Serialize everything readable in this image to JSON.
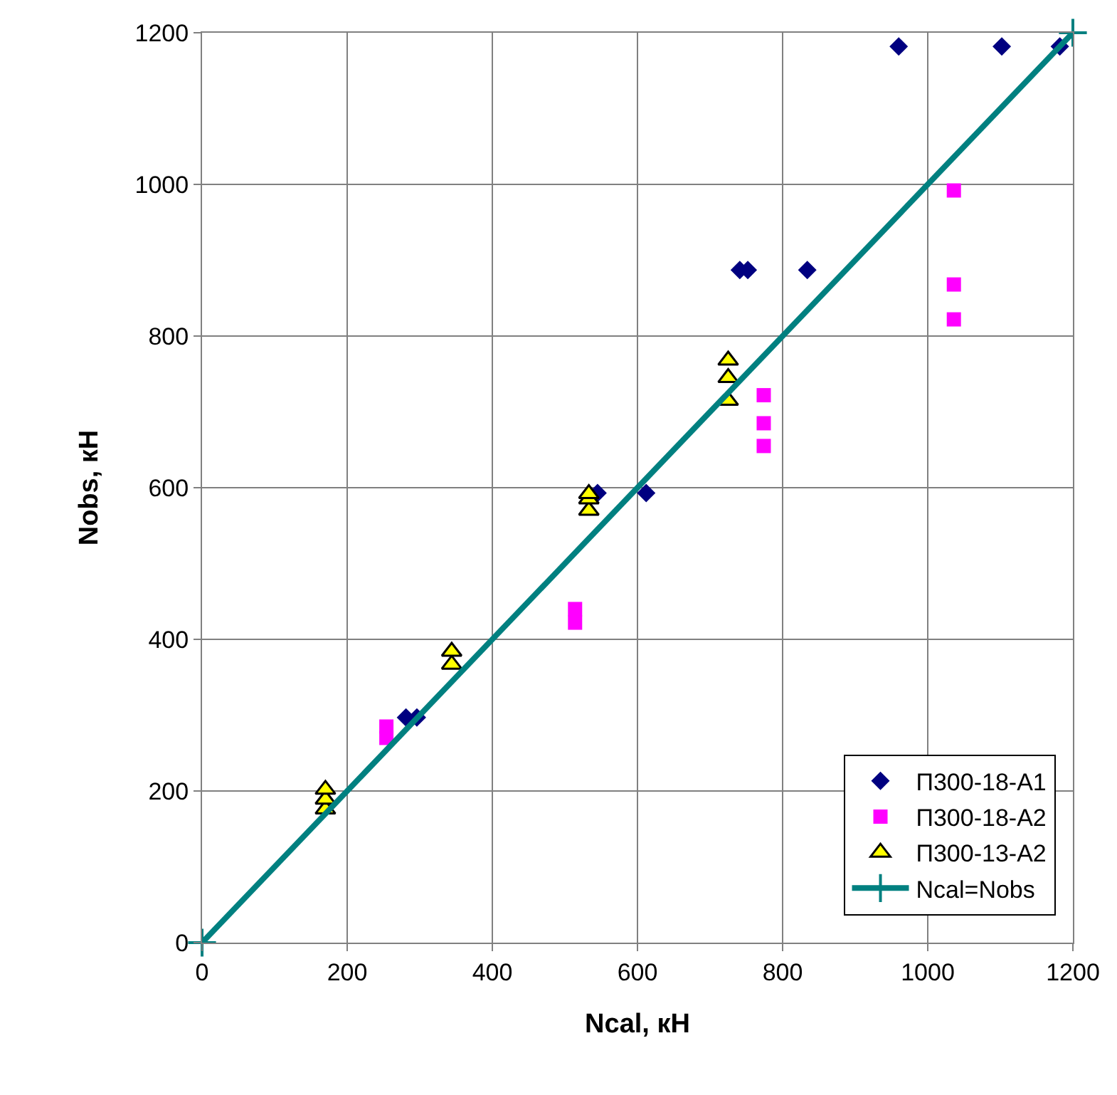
{
  "chart_data": {
    "type": "scatter",
    "xlabel": "Ncal, кН",
    "ylabel": "Nobs, кН",
    "xlim": [
      0,
      1200
    ],
    "ylim": [
      0,
      1200
    ],
    "xticks": [
      0,
      200,
      400,
      600,
      800,
      1000,
      1200
    ],
    "yticks": [
      0,
      200,
      400,
      600,
      800,
      1000,
      1200
    ],
    "grid": true,
    "legend": "bottom right",
    "series": [
      {
        "name": "П300-18-А1",
        "color": "#000080",
        "marker": "diamond",
        "x": [
          281,
          296,
          545,
          612,
          741,
          752,
          834,
          960,
          1102,
          1182
        ],
        "values": [
          297,
          297,
          593,
          593,
          887,
          887,
          887,
          1182,
          1182,
          1182
        ]
      },
      {
        "name": "П300-18-А2",
        "color": "#ff00ff",
        "marker": "square",
        "x": [
          254,
          254,
          514,
          514,
          774,
          774,
          774,
          1036,
          1036,
          1036
        ],
        "values": [
          270,
          285,
          422,
          440,
          655,
          685,
          722,
          822,
          868,
          992
        ]
      },
      {
        "name": "П300-13-А2",
        "color": "#ffff00",
        "marker": "triangle",
        "x": [
          170,
          170,
          170,
          344,
          344,
          533,
          533,
          533,
          725,
          725,
          725
        ],
        "values": [
          176,
          189,
          202,
          367,
          384,
          570,
          585,
          592,
          715,
          745,
          768
        ]
      },
      {
        "name": "Ncal=Nobs",
        "type": "line",
        "color": "#008080",
        "marker": "cross",
        "line_style": "solid",
        "x": [
          0,
          1200
        ],
        "values": [
          0,
          1200
        ]
      }
    ]
  }
}
